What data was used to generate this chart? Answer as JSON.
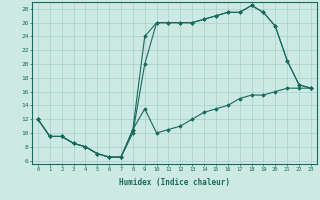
{
  "xlabel": "Humidex (Indice chaleur)",
  "bg_color": "#cce9e4",
  "line_color": "#1a6b5a",
  "grid_color": "#a8cfc9",
  "xlim": [
    -0.5,
    23.5
  ],
  "ylim": [
    5.5,
    29
  ],
  "xticks": [
    0,
    1,
    2,
    3,
    4,
    5,
    6,
    7,
    8,
    9,
    10,
    11,
    12,
    13,
    14,
    15,
    16,
    17,
    18,
    19,
    20,
    21,
    22,
    23
  ],
  "yticks": [
    6,
    8,
    10,
    12,
    14,
    16,
    18,
    20,
    22,
    24,
    26,
    28
  ],
  "curve1_x": [
    0,
    1,
    2,
    3,
    4,
    5,
    6,
    7,
    8,
    9,
    10,
    11,
    12,
    13,
    14,
    15,
    16,
    17,
    18,
    19,
    20,
    21,
    22,
    23
  ],
  "curve1_y": [
    12,
    9.5,
    9.5,
    8.5,
    8,
    7,
    6.5,
    6.5,
    10,
    20,
    26,
    26,
    26,
    26,
    26.5,
    27,
    27.5,
    27.5,
    28.5,
    27.5,
    25.5,
    20.5,
    17,
    16.5
  ],
  "curve2_x": [
    0,
    1,
    2,
    3,
    4,
    5,
    6,
    7,
    8,
    9,
    10,
    11,
    12,
    13,
    14,
    15,
    16,
    17,
    18,
    19,
    20,
    21,
    22,
    23
  ],
  "curve2_y": [
    12,
    9.5,
    9.5,
    8.5,
    8,
    7,
    6.5,
    6.5,
    10.5,
    24,
    26,
    26,
    26,
    26,
    26.5,
    27,
    27.5,
    27.5,
    28.5,
    27.5,
    25.5,
    20.5,
    17,
    16.5
  ],
  "curve3_x": [
    0,
    1,
    2,
    3,
    4,
    5,
    6,
    7,
    8,
    9,
    10,
    11,
    12,
    13,
    14,
    15,
    16,
    17,
    18,
    19,
    20,
    21,
    22,
    23
  ],
  "curve3_y": [
    12,
    9.5,
    9.5,
    8.5,
    8,
    7,
    6.5,
    6.5,
    10.5,
    13.5,
    10,
    10.5,
    11,
    12,
    13,
    13.5,
    14,
    15,
    15.5,
    15.5,
    16,
    16.5,
    16.5,
    16.5
  ]
}
